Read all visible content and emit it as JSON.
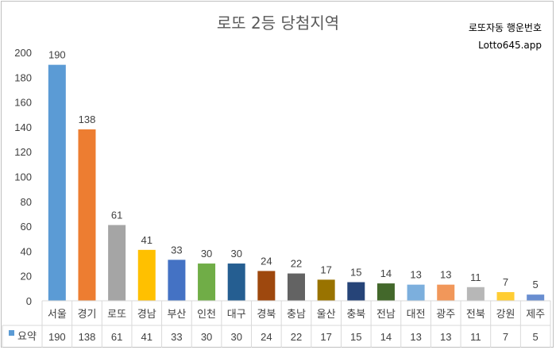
{
  "watermark": {
    "line1": "로또자동 행운번호",
    "line2": "Lotto645.app"
  },
  "chart_data": {
    "type": "bar",
    "title": "로또 2등 당첨지역",
    "categories": [
      "서울",
      "경기",
      "로또",
      "경남",
      "부산",
      "인천",
      "대구",
      "경북",
      "충남",
      "울산",
      "충북",
      "전남",
      "대전",
      "광주",
      "전북",
      "강원",
      "제주"
    ],
    "series": [
      {
        "name": "요약",
        "values": [
          190,
          138,
          61,
          41,
          33,
          30,
          30,
          24,
          22,
          17,
          15,
          14,
          13,
          13,
          11,
          7,
          5
        ]
      }
    ],
    "colors": [
      "#5b9bd5",
      "#ed7d31",
      "#a5a5a5",
      "#ffc000",
      "#4472c4",
      "#70ad47",
      "#255e91",
      "#9e480e",
      "#636363",
      "#997300",
      "#264478",
      "#43682b",
      "#7cafdd",
      "#f1975a",
      "#b7b7b7",
      "#ffcd33",
      "#698ed0"
    ],
    "legend_color": "#5b9bd5",
    "ylim": [
      0,
      200
    ],
    "yticks": [
      0,
      20,
      40,
      60,
      80,
      100,
      120,
      140,
      160,
      180,
      200
    ],
    "grid": false,
    "data_table": true
  }
}
